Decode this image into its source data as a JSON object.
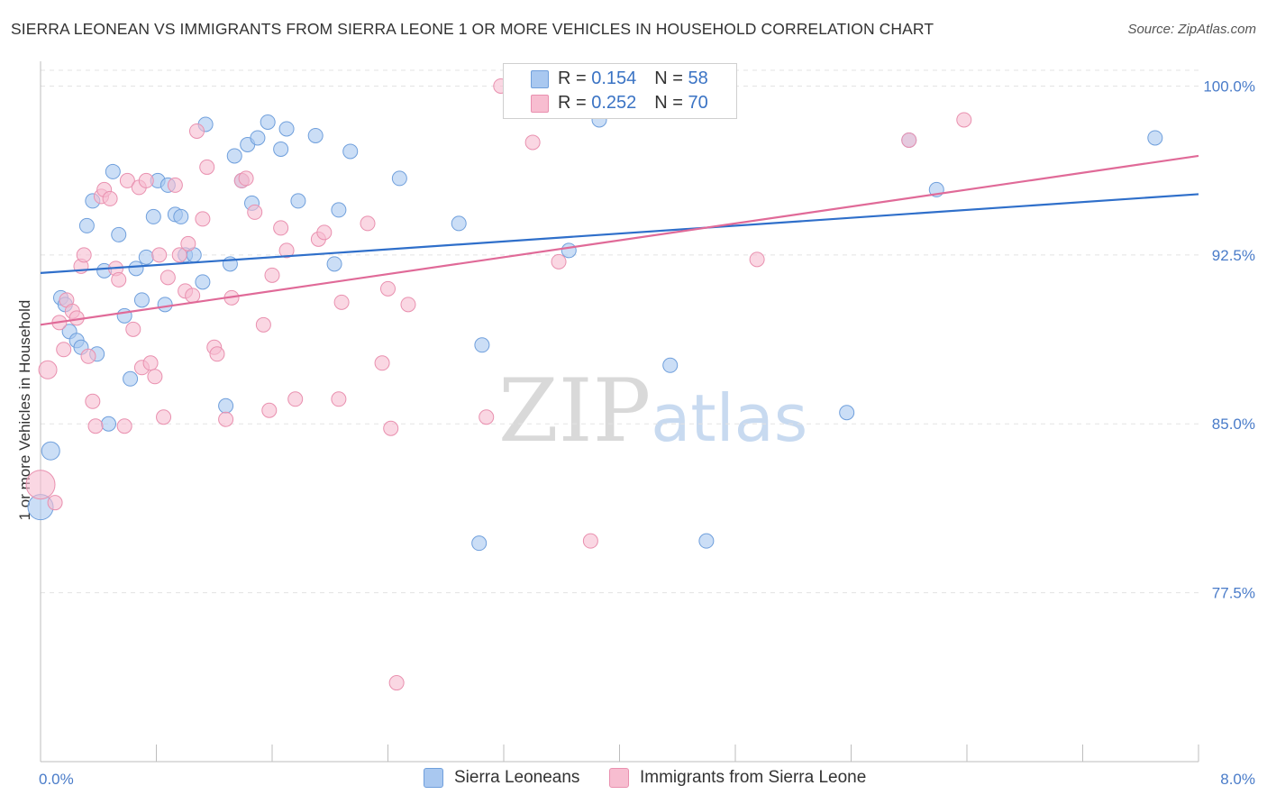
{
  "title": "SIERRA LEONEAN VS IMMIGRANTS FROM SIERRA LEONE 1 OR MORE VEHICLES IN HOUSEHOLD CORRELATION CHART",
  "source": "Source: ZipAtlas.com",
  "watermark": {
    "zip": "ZIP",
    "atlas": "atlas"
  },
  "legend": {
    "r_label": "R =",
    "n_label": "N =",
    "rows": [
      {
        "r": "0.154",
        "n": "58",
        "color": "#a9c8f0"
      },
      {
        "r": "0.252",
        "n": "70",
        "color": "#f7bdd0"
      }
    ]
  },
  "bottom_legend": [
    "Sierra Leoneans",
    "Immigrants from Sierra Leone"
  ],
  "colors": {
    "blue_fill": "#a9c8f0",
    "blue_stroke": "#6f9fdc",
    "blue_line": "#2f6fca",
    "pink_fill": "#f7bdd0",
    "pink_stroke": "#e990af",
    "pink_line": "#e06a98",
    "tick": "#4a7cc9",
    "grid": "#e3e3e3"
  },
  "chart_data": {
    "type": "scatter",
    "title": "SIERRA LEONEAN VS IMMIGRANTS FROM SIERRA LEONE 1 OR MORE VEHICLES IN HOUSEHOLD CORRELATION CHART",
    "xlabel": "",
    "ylabel": "1 or more Vehicles in Household",
    "xlim": [
      0,
      8
    ],
    "ylim": [
      70,
      100.7
    ],
    "x_tick_labels": [
      "0.0%",
      "8.0%"
    ],
    "y_ticks": [
      77.5,
      85.0,
      92.5,
      100.0
    ],
    "y_tick_labels": [
      "77.5%",
      "85.0%",
      "92.5%",
      "100.0%"
    ],
    "grid": "horizontal dashed",
    "legend_position": "top-center",
    "series": [
      {
        "name": "Sierra Leoneans",
        "r": 0.154,
        "n": 58,
        "trend": {
          "x": [
            0,
            8
          ],
          "y": [
            91.7,
            95.2
          ]
        },
        "points": [
          [
            0.0,
            81.3,
            14
          ],
          [
            0.07,
            83.8,
            10
          ],
          [
            0.14,
            90.6,
            8
          ],
          [
            0.17,
            90.3,
            8
          ],
          [
            0.2,
            89.1,
            8
          ],
          [
            0.25,
            88.7,
            8
          ],
          [
            0.28,
            88.4,
            8
          ],
          [
            0.32,
            93.8,
            8
          ],
          [
            0.36,
            94.9,
            8
          ],
          [
            0.39,
            88.1,
            8
          ],
          [
            0.44,
            91.8,
            8
          ],
          [
            0.47,
            85.0,
            8
          ],
          [
            0.5,
            96.2,
            8
          ],
          [
            0.54,
            93.4,
            8
          ],
          [
            0.58,
            89.8,
            8
          ],
          [
            0.62,
            87.0,
            8
          ],
          [
            0.66,
            91.9,
            8
          ],
          [
            0.7,
            90.5,
            8
          ],
          [
            0.73,
            92.4,
            8
          ],
          [
            0.78,
            94.2,
            8
          ],
          [
            0.81,
            95.8,
            8
          ],
          [
            0.86,
            90.3,
            8
          ],
          [
            0.88,
            95.6,
            8
          ],
          [
            0.93,
            94.3,
            8
          ],
          [
            0.97,
            94.2,
            8
          ],
          [
            1.0,
            92.5,
            8
          ],
          [
            1.06,
            92.5,
            8
          ],
          [
            1.12,
            91.3,
            8
          ],
          [
            1.14,
            98.3,
            8
          ],
          [
            1.28,
            85.8,
            8
          ],
          [
            1.31,
            92.1,
            8
          ],
          [
            1.34,
            96.9,
            8
          ],
          [
            1.39,
            95.8,
            8
          ],
          [
            1.43,
            97.4,
            8
          ],
          [
            1.46,
            94.8,
            8
          ],
          [
            1.5,
            97.7,
            8
          ],
          [
            1.57,
            98.4,
            8
          ],
          [
            1.66,
            97.2,
            8
          ],
          [
            1.7,
            98.1,
            8
          ],
          [
            1.78,
            94.9,
            8
          ],
          [
            1.9,
            97.8,
            8
          ],
          [
            2.03,
            92.1,
            8
          ],
          [
            2.06,
            94.5,
            8
          ],
          [
            2.14,
            97.1,
            8
          ],
          [
            2.48,
            95.9,
            8
          ],
          [
            2.89,
            93.9,
            8
          ],
          [
            3.05,
            88.5,
            8
          ],
          [
            3.03,
            79.7,
            8
          ],
          [
            3.65,
            92.7,
            8
          ],
          [
            3.86,
            98.5,
            8
          ],
          [
            4.35,
            87.6,
            8
          ],
          [
            4.6,
            79.8,
            8
          ],
          [
            5.57,
            85.5,
            8
          ],
          [
            6.0,
            97.6,
            8
          ],
          [
            6.19,
            95.4,
            8
          ],
          [
            7.7,
            97.7,
            8
          ],
          [
            3.52,
            100.0,
            8
          ],
          [
            4.3,
            100.0,
            8
          ]
        ]
      },
      {
        "name": "Immigrants from Sierra Leone",
        "r": 0.252,
        "n": 70,
        "trend": {
          "x": [
            0,
            8
          ],
          "y": [
            89.4,
            96.9
          ]
        },
        "points": [
          [
            0.0,
            82.3,
            16
          ],
          [
            0.05,
            87.4,
            10
          ],
          [
            0.1,
            81.5,
            8
          ],
          [
            0.13,
            89.5,
            8
          ],
          [
            0.16,
            88.3,
            8
          ],
          [
            0.18,
            90.5,
            8
          ],
          [
            0.22,
            90.0,
            8
          ],
          [
            0.25,
            89.7,
            8
          ],
          [
            0.28,
            92.0,
            8
          ],
          [
            0.3,
            92.5,
            8
          ],
          [
            0.33,
            88.0,
            8
          ],
          [
            0.36,
            86.0,
            8
          ],
          [
            0.38,
            84.9,
            8
          ],
          [
            0.42,
            95.1,
            8
          ],
          [
            0.44,
            95.4,
            8
          ],
          [
            0.48,
            95.0,
            8
          ],
          [
            0.52,
            91.9,
            8
          ],
          [
            0.54,
            91.4,
            8
          ],
          [
            0.58,
            84.9,
            8
          ],
          [
            0.6,
            95.8,
            8
          ],
          [
            0.64,
            89.2,
            8
          ],
          [
            0.68,
            95.5,
            8
          ],
          [
            0.7,
            87.5,
            8
          ],
          [
            0.73,
            95.8,
            8
          ],
          [
            0.76,
            87.7,
            8
          ],
          [
            0.79,
            87.1,
            8
          ],
          [
            0.82,
            92.5,
            8
          ],
          [
            0.85,
            85.3,
            8
          ],
          [
            0.88,
            91.5,
            8
          ],
          [
            0.93,
            95.6,
            8
          ],
          [
            0.96,
            92.5,
            8
          ],
          [
            1.0,
            90.9,
            8
          ],
          [
            1.02,
            93.0,
            8
          ],
          [
            1.05,
            90.7,
            8
          ],
          [
            1.08,
            98.0,
            8
          ],
          [
            1.12,
            94.1,
            8
          ],
          [
            1.15,
            96.4,
            8
          ],
          [
            1.2,
            88.4,
            8
          ],
          [
            1.22,
            88.1,
            8
          ],
          [
            1.28,
            85.2,
            8
          ],
          [
            1.32,
            90.6,
            8
          ],
          [
            1.39,
            95.8,
            8
          ],
          [
            1.42,
            95.9,
            8
          ],
          [
            1.48,
            94.4,
            8
          ],
          [
            1.54,
            89.4,
            8
          ],
          [
            1.58,
            85.6,
            8
          ],
          [
            1.6,
            91.6,
            8
          ],
          [
            1.66,
            93.7,
            8
          ],
          [
            1.7,
            92.7,
            8
          ],
          [
            1.76,
            86.1,
            8
          ],
          [
            1.92,
            93.2,
            8
          ],
          [
            1.96,
            93.5,
            8
          ],
          [
            2.06,
            86.1,
            8
          ],
          [
            2.08,
            90.4,
            8
          ],
          [
            2.26,
            93.9,
            8
          ],
          [
            2.36,
            87.7,
            8
          ],
          [
            2.4,
            91.0,
            8
          ],
          [
            2.42,
            84.8,
            8
          ],
          [
            2.54,
            90.3,
            8
          ],
          [
            2.46,
            73.5,
            8
          ],
          [
            3.08,
            85.3,
            8
          ],
          [
            3.18,
            100.0,
            8
          ],
          [
            3.3,
            100.0,
            8
          ],
          [
            3.4,
            97.5,
            8
          ],
          [
            3.58,
            92.2,
            8
          ],
          [
            3.8,
            79.8,
            8
          ],
          [
            4.43,
            100.0,
            8
          ],
          [
            4.95,
            92.3,
            8
          ],
          [
            6.0,
            97.6,
            8
          ],
          [
            6.38,
            98.5,
            8
          ]
        ]
      }
    ]
  }
}
